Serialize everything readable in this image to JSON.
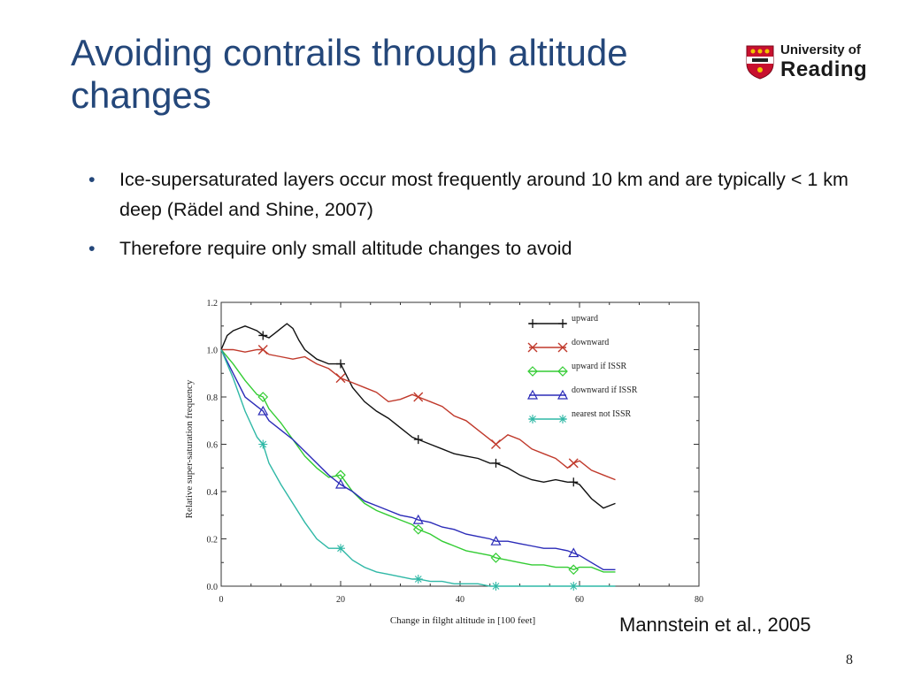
{
  "slide": {
    "title": "Avoiding contrails through altitude changes",
    "bullets": [
      "Ice-supersaturated layers occur most frequently around 10 km and are typically < 1 km deep (Rädel and Shine, 2007)",
      "Therefore require only small altitude changes to avoid"
    ],
    "citation": "Mannstein et al., 2005",
    "page_number": "8"
  },
  "logo": {
    "line1": "University of",
    "line2": "Reading",
    "shield_color": "#c8102e",
    "icon": "university-shield-icon"
  },
  "colors": {
    "title": "#24477a",
    "upward": "#111111",
    "downward": "#c0392b",
    "upward_if_issr": "#33cc33",
    "downward_if_issr": "#2b2bb8",
    "nearest_not_issr": "#2fb8a6"
  },
  "chart_data": {
    "type": "line",
    "xlabel": "Change in filght altitude in [100 feet]",
    "ylabel": "Relative super-saturation frequency",
    "xlim": [
      0,
      80
    ],
    "ylim": [
      0,
      1.2
    ],
    "xticks": [
      "0",
      "20",
      "40",
      "60",
      "80"
    ],
    "yticks": [
      "0.0",
      "0.2",
      "0.4",
      "0.6",
      "0.8",
      "1.0",
      "1.2"
    ],
    "legend_position": "top-right",
    "grid": false,
    "series": [
      {
        "name": "upward",
        "color": "#111111",
        "marker": "plus",
        "x": [
          0,
          1,
          2,
          3,
          4,
          5,
          6,
          7,
          8,
          9,
          10,
          11,
          12,
          13,
          14,
          15,
          16,
          17,
          18,
          19,
          20,
          22,
          24,
          26,
          28,
          30,
          32,
          33,
          35,
          37,
          39,
          41,
          43,
          45,
          46,
          48,
          50,
          52,
          54,
          56,
          58,
          59,
          60,
          61,
          62,
          63,
          64,
          65,
          66
        ],
        "y": [
          1.0,
          1.06,
          1.08,
          1.09,
          1.1,
          1.09,
          1.08,
          1.06,
          1.05,
          1.07,
          1.09,
          1.11,
          1.09,
          1.04,
          1.0,
          0.98,
          0.96,
          0.95,
          0.94,
          0.94,
          0.94,
          0.84,
          0.78,
          0.74,
          0.71,
          0.67,
          0.63,
          0.62,
          0.6,
          0.58,
          0.56,
          0.55,
          0.54,
          0.52,
          0.52,
          0.5,
          0.47,
          0.45,
          0.44,
          0.45,
          0.44,
          0.44,
          0.43,
          0.4,
          0.37,
          0.35,
          0.33,
          0.34,
          0.35
        ]
      },
      {
        "name": "downward",
        "color": "#c0392b",
        "marker": "cross",
        "x": [
          0,
          2,
          4,
          6,
          7,
          8,
          10,
          12,
          14,
          16,
          18,
          20,
          22,
          24,
          26,
          28,
          30,
          32,
          33,
          35,
          37,
          39,
          41,
          43,
          45,
          46,
          48,
          50,
          52,
          54,
          56,
          58,
          59,
          60,
          62,
          64,
          66
        ],
        "y": [
          1.0,
          1.0,
          0.99,
          1.0,
          1.0,
          0.98,
          0.97,
          0.96,
          0.97,
          0.94,
          0.92,
          0.88,
          0.86,
          0.84,
          0.82,
          0.78,
          0.79,
          0.81,
          0.8,
          0.78,
          0.76,
          0.72,
          0.7,
          0.66,
          0.62,
          0.6,
          0.64,
          0.62,
          0.58,
          0.56,
          0.54,
          0.5,
          0.52,
          0.53,
          0.49,
          0.47,
          0.45
        ]
      },
      {
        "name": "upward if ISSR",
        "color": "#33cc33",
        "marker": "diamond",
        "x": [
          0,
          2,
          4,
          6,
          7,
          8,
          10,
          12,
          14,
          16,
          18,
          20,
          22,
          24,
          26,
          28,
          30,
          32,
          33,
          35,
          37,
          39,
          41,
          43,
          45,
          46,
          48,
          50,
          52,
          54,
          56,
          58,
          59,
          60,
          62,
          64,
          66
        ],
        "y": [
          1.0,
          0.94,
          0.87,
          0.81,
          0.8,
          0.75,
          0.69,
          0.62,
          0.55,
          0.5,
          0.46,
          0.47,
          0.4,
          0.35,
          0.32,
          0.3,
          0.28,
          0.26,
          0.24,
          0.22,
          0.19,
          0.17,
          0.15,
          0.14,
          0.13,
          0.12,
          0.11,
          0.1,
          0.09,
          0.09,
          0.08,
          0.08,
          0.07,
          0.08,
          0.08,
          0.06,
          0.06
        ]
      },
      {
        "name": "downward if ISSR",
        "color": "#2b2bb8",
        "marker": "triangle",
        "x": [
          0,
          2,
          4,
          6,
          7,
          8,
          10,
          12,
          14,
          16,
          18,
          20,
          22,
          24,
          26,
          28,
          30,
          32,
          33,
          35,
          37,
          39,
          41,
          43,
          45,
          46,
          48,
          50,
          52,
          54,
          56,
          58,
          59,
          60,
          62,
          64,
          66
        ],
        "y": [
          1.0,
          0.9,
          0.8,
          0.76,
          0.74,
          0.7,
          0.66,
          0.62,
          0.57,
          0.52,
          0.47,
          0.43,
          0.4,
          0.36,
          0.34,
          0.32,
          0.3,
          0.29,
          0.28,
          0.27,
          0.25,
          0.24,
          0.22,
          0.21,
          0.2,
          0.19,
          0.19,
          0.18,
          0.17,
          0.16,
          0.16,
          0.15,
          0.14,
          0.13,
          0.1,
          0.07,
          0.07
        ]
      },
      {
        "name": "nearest not ISSR",
        "color": "#2fb8a6",
        "marker": "asterisk",
        "x": [
          0,
          2,
          4,
          6,
          7,
          8,
          10,
          12,
          14,
          16,
          18,
          20,
          22,
          24,
          26,
          28,
          30,
          32,
          33,
          35,
          37,
          39,
          41,
          43,
          45,
          46,
          48,
          50,
          52,
          54,
          56,
          58,
          59,
          60,
          62,
          64,
          66
        ],
        "y": [
          1.0,
          0.88,
          0.74,
          0.63,
          0.6,
          0.52,
          0.43,
          0.35,
          0.27,
          0.2,
          0.16,
          0.16,
          0.11,
          0.08,
          0.06,
          0.05,
          0.04,
          0.03,
          0.03,
          0.02,
          0.02,
          0.01,
          0.01,
          0.01,
          0.0,
          0.0,
          0.0,
          0.0,
          0.0,
          0.0,
          0.0,
          0.0,
          0.0,
          0.0,
          0.0,
          0.0,
          0.0
        ]
      }
    ],
    "marker_x": [
      7,
      20,
      33,
      46,
      59
    ]
  }
}
